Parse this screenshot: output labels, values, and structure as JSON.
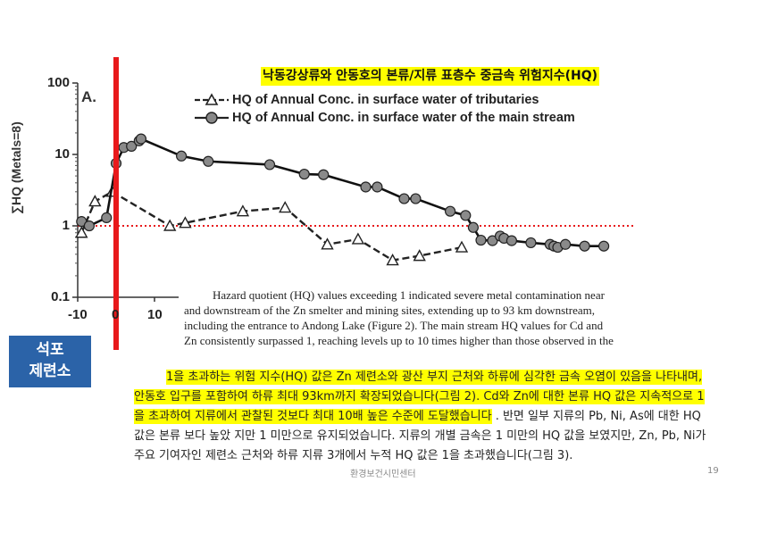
{
  "slide": {
    "korean_title": "낙동강상류와 안동호의 본류/지류 표층수 중금속 위험지수(HQ)",
    "smelter_label_line1": "석포",
    "smelter_label_line2": "제련소",
    "english_lines": [
      "Hazard quotient (HQ) values exceeding 1 indicated severe metal contamination near",
      "and downstream of the Zn smelter and mining sites, extending up to 93 km downstream,",
      "including the entrance to Andong Lake (Figure 2). The main stream HQ values for Cd and",
      "Zn consistently surpassed 1, reaching levels up to 10 times higher than those observed in the"
    ],
    "korean_lines": [
      {
        "hl": "1을 초과하는 위험 지수(HQ) 값은 Zn 제련소와 광산 부지 근처와 하류에 심각한 금속 오염이 있음을 나타내며,",
        "rest": ""
      },
      {
        "hl": "안동호 입구를 포함하여 하류 최대 93km까지 확장되었습니다(그림 2). Cd와 Zn에 대한 본류 HQ 값은 지속적으로 1",
        "rest": ""
      },
      {
        "hl": "을 초과하여 지류에서 관찰된 것보다 최대 10배 높은 수준에 도달했습니다",
        "rest": " . 반면 일부 지류의 Pb, Ni, As에 대한 HQ"
      },
      {
        "hl": "",
        "rest": "값은 본류 보다 높았 지만 1 미만으로 유지되었습니다. 지류의 개별 금속은 1 미만의 HQ 값을 보였지만, Zn, Pb, Ni가"
      },
      {
        "hl": "",
        "rest": "주요 기여자인 제련소 근처와 하류 지류 3개에서 누적 HQ 값은 1을 초과했습니다(그림 3)."
      }
    ],
    "footer": "환경보건시민센터",
    "page_number": "19",
    "colors": {
      "highlight": "#ffff00",
      "smelter_line": "#e8191b",
      "threshold": "#e8191b",
      "smelter_box": "#2b63a8"
    }
  },
  "chart_data": {
    "type": "line",
    "panel_label": "A.",
    "ylabel": "∑HQ (Metals=8)",
    "yscale": "log",
    "ylim": [
      0.1,
      100
    ],
    "yticks": [
      "100",
      "10",
      "1",
      "0.1"
    ],
    "xlim": [
      -12,
      130
    ],
    "xticks": [
      "-10",
      "0",
      "10"
    ],
    "threshold": 1,
    "smelter_x": 0,
    "series": [
      {
        "name": "HQ of Annual Conc. in surface water of tributaries",
        "style": "dashed-triangle",
        "x": [
          -9,
          -5.5,
          -1,
          14,
          18,
          33,
          44,
          55,
          63,
          72,
          79,
          90
        ],
        "y": [
          0.8,
          2.2,
          3.0,
          1.0,
          1.1,
          1.6,
          1.8,
          0.55,
          0.65,
          0.33,
          0.38,
          0.5
        ]
      },
      {
        "name": "HQ of Annual Conc. in surface water of the main stream",
        "style": "solid-circle",
        "x": [
          -9,
          -7,
          -2.5,
          0,
          2,
          4,
          6,
          6.5,
          17,
          24,
          40,
          49,
          54,
          65,
          68,
          75,
          78,
          87,
          91,
          93,
          95,
          98,
          100,
          101,
          103,
          108,
          113,
          114,
          115,
          117,
          122,
          127
        ],
        "y": [
          1.15,
          1.0,
          1.3,
          7.5,
          12.5,
          13,
          15.5,
          16.5,
          9.5,
          8.0,
          7.2,
          5.3,
          5.2,
          3.5,
          3.5,
          2.4,
          2.4,
          1.6,
          1.4,
          0.95,
          0.63,
          0.62,
          0.72,
          0.67,
          0.62,
          0.58,
          0.55,
          0.52,
          0.5,
          0.55,
          0.52,
          0.52
        ]
      }
    ]
  }
}
